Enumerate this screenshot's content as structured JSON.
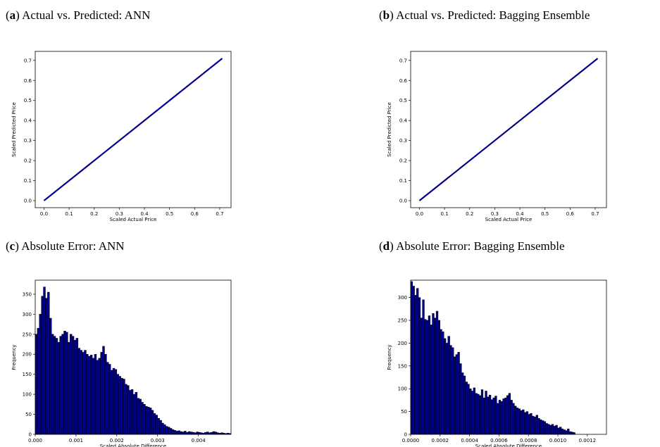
{
  "panels": [
    {
      "label": "a",
      "caption": "Actual vs. Predicted: ANN"
    },
    {
      "label": "b",
      "caption": "Actual vs. Predicted: Bagging Ensemble"
    },
    {
      "label": "c",
      "caption": "Absolute Error: ANN"
    },
    {
      "label": "d",
      "caption": "Absolute Error: Bagging Ensemble"
    }
  ],
  "chart_data": [
    {
      "type": "line",
      "xlabel": "Scaled Actual Price",
      "ylabel": "Scaled Predicted Price",
      "xlim": [
        -0.035,
        0.745
      ],
      "ylim": [
        -0.035,
        0.745
      ],
      "xticks": [
        0.0,
        0.1,
        0.2,
        0.3,
        0.4,
        0.5,
        0.6,
        0.7
      ],
      "yticks": [
        0.0,
        0.1,
        0.2,
        0.3,
        0.4,
        0.5,
        0.6,
        0.7
      ],
      "xtick_labels": [
        "0.0",
        "0.1",
        "0.2",
        "0.3",
        "0.4",
        "0.5",
        "0.6",
        "0.7"
      ],
      "ytick_labels": [
        "0.0",
        "0.1",
        "0.2",
        "0.3",
        "0.4",
        "0.5",
        "0.6",
        "0.7"
      ],
      "line_color": "#00008b",
      "series": [
        {
          "x": [
            0.0,
            0.71
          ],
          "y": [
            0.0,
            0.71
          ]
        }
      ]
    },
    {
      "type": "line",
      "xlabel": "Scaled Actual Price",
      "ylabel": "Scaled Predicted Price",
      "xlim": [
        -0.035,
        0.745
      ],
      "ylim": [
        -0.035,
        0.745
      ],
      "xticks": [
        0.0,
        0.1,
        0.2,
        0.3,
        0.4,
        0.5,
        0.6,
        0.7
      ],
      "yticks": [
        0.0,
        0.1,
        0.2,
        0.3,
        0.4,
        0.5,
        0.6,
        0.7
      ],
      "xtick_labels": [
        "0.0",
        "0.1",
        "0.2",
        "0.3",
        "0.4",
        "0.5",
        "0.6",
        "0.7"
      ],
      "ytick_labels": [
        "0.0",
        "0.1",
        "0.2",
        "0.3",
        "0.4",
        "0.5",
        "0.6",
        "0.7"
      ],
      "line_color": "#00008b",
      "series": [
        {
          "x": [
            0.0,
            0.71
          ],
          "y": [
            0.0,
            0.71
          ]
        }
      ]
    },
    {
      "type": "bar",
      "xlabel": "Scaled Absolute Difference",
      "ylabel": "Frequency",
      "xlim": [
        0.0,
        0.0048
      ],
      "ylim": [
        0,
        385
      ],
      "xticks": [
        0.0,
        0.001,
        0.002,
        0.003,
        0.004
      ],
      "xtick_labels": [
        "0.000",
        "0.001",
        "0.002",
        "0.003",
        "0.004"
      ],
      "yticks": [
        0,
        50,
        100,
        150,
        200,
        250,
        300,
        350
      ],
      "ytick_labels": [
        "0",
        "50",
        "100",
        "150",
        "200",
        "250",
        "300",
        "350"
      ],
      "bar_color": "#00008b",
      "bin_start": 0.0,
      "bin_width": 5e-05,
      "values": [
        250,
        265,
        300,
        345,
        368,
        340,
        355,
        290,
        250,
        245,
        240,
        230,
        245,
        250,
        258,
        255,
        230,
        250,
        245,
        235,
        240,
        215,
        210,
        205,
        210,
        200,
        195,
        198,
        190,
        200,
        185,
        190,
        205,
        220,
        200,
        180,
        175,
        160,
        165,
        162,
        150,
        145,
        140,
        138,
        125,
        122,
        110,
        112,
        100,
        105,
        90,
        88,
        80,
        75,
        70,
        68,
        66,
        60,
        52,
        48,
        40,
        35,
        28,
        24,
        20,
        18,
        15,
        12,
        10,
        8,
        9,
        7,
        6,
        8,
        5,
        7,
        6,
        5,
        4,
        6,
        5,
        4,
        3,
        5,
        6,
        4,
        5,
        7,
        6,
        4,
        3,
        4,
        3,
        2,
        3,
        2
      ]
    },
    {
      "type": "bar",
      "xlabel": "Scaled Absolute Difference",
      "ylabel": "Frequency",
      "xlim": [
        0.0,
        0.00133
      ],
      "ylim": [
        0,
        338
      ],
      "xticks": [
        0.0,
        0.0002,
        0.0004,
        0.0006,
        0.0008,
        0.001,
        0.0012
      ],
      "xtick_labels": [
        "0.0000",
        "0.0002",
        "0.0004",
        "0.0006",
        "0.0008",
        "0.0010",
        "0.0012"
      ],
      "yticks": [
        0,
        50,
        100,
        150,
        200,
        250,
        300
      ],
      "ytick_labels": [
        "0",
        "50",
        "100",
        "150",
        "200",
        "250",
        "300"
      ],
      "bar_color": "#00008b",
      "bin_start": 0.0,
      "bin_width": 1.33e-05,
      "values": [
        335,
        325,
        305,
        320,
        300,
        255,
        295,
        252,
        250,
        260,
        240,
        265,
        255,
        270,
        250,
        230,
        225,
        210,
        200,
        215,
        195,
        190,
        170,
        175,
        180,
        155,
        135,
        128,
        115,
        110,
        100,
        95,
        102,
        90,
        88,
        85,
        98,
        80,
        95,
        82,
        86,
        76,
        80,
        84,
        68,
        75,
        72,
        78,
        80,
        85,
        90,
        75,
        68,
        62,
        58,
        56,
        52,
        54,
        48,
        50,
        44,
        46,
        40,
        38,
        42,
        35,
        32,
        30,
        28,
        24,
        22,
        20,
        22,
        18,
        20,
        14,
        16,
        12,
        10,
        8,
        12,
        6,
        5,
        4
      ]
    }
  ]
}
